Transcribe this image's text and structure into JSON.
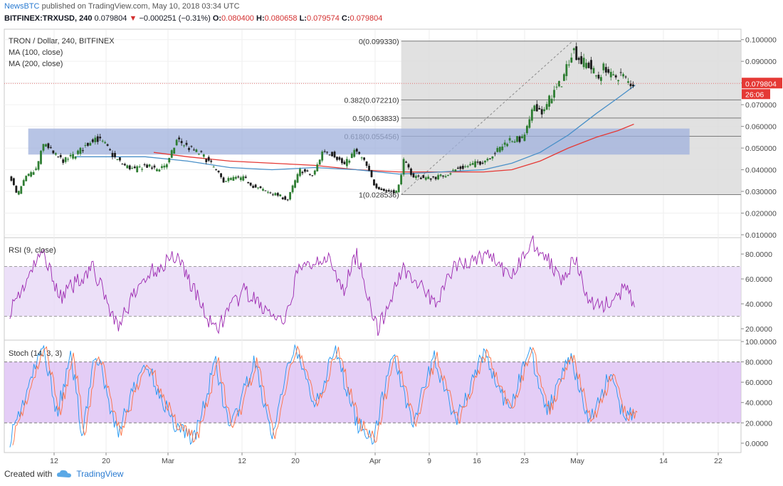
{
  "header": {
    "publisher": "NewsBTC",
    "published_text": "published on TradingView.com, May 10, 2018 03:34 UTC",
    "symbol_line": "BITFINEX:TRXUSD, 240",
    "last": "0.079804",
    "change": "−0.000251 (−0.31%)",
    "o_label": "O:",
    "o": "0.080400",
    "h_label": "H:",
    "h": "0.080658",
    "l_label": "L:",
    "l": "0.079574",
    "c_label": "C:",
    "c": "0.079804"
  },
  "legend": {
    "title": "TRON / Dollar, 240, BITFINEX",
    "ma100": "MA (100, close)",
    "ma200": "MA (200, close)",
    "rsi": "RSI (9, close)",
    "stoch": "Stoch (14, 3, 3)"
  },
  "fib_labels": {
    "f0": "0(0.099330)",
    "f382": "0.382(0.072210)",
    "f5": "0.5(0.063833)",
    "f618": "0.618(0.055456)",
    "f1": "1(0.028536)"
  },
  "price_axis_badges": {
    "price": "0.079804",
    "timer": "26:06"
  },
  "footer": {
    "created_with": "Created with",
    "brand": "TradingView"
  },
  "colors": {
    "up": "#2e7d32",
    "down": "#1b1b1b",
    "ma100": "#4a90c8",
    "ma200": "#e53935",
    "rsi": "#9c27b0",
    "stoch_k": "#2196f3",
    "stoch_d": "#ff7043",
    "band": "#e6d5f5",
    "zone": "#9fb0dc",
    "fibbox": "#dcdcdc"
  },
  "chart_data": [
    {
      "type": "candlestick",
      "title": "TRON / Dollar, 240, BITFINEX",
      "y_ticks": [
        "0.100000",
        "0.090000",
        "0.080000",
        "0.070000",
        "0.060000",
        "0.050000",
        "0.040000",
        "0.030000",
        "0.020000",
        "0.010000"
      ],
      "ylim": [
        0.009,
        0.1045
      ],
      "x_ticks": [
        "12",
        "20",
        "Mar",
        "12",
        "20",
        "Apr",
        "9",
        "16",
        "23",
        "May",
        "14",
        "22"
      ],
      "x_tick_pos": [
        76,
        149,
        236,
        340,
        415,
        527,
        603,
        670,
        737,
        811,
        932,
        1009
      ],
      "x_range_index": [
        0,
        1045
      ],
      "last_candle_index": 895,
      "fib_start_index": 563,
      "fib_levels": [
        {
          "ratio": 0,
          "value": 0.09933
        },
        {
          "ratio": 0.382,
          "value": 0.07221
        },
        {
          "ratio": 0.5,
          "value": 0.063833
        },
        {
          "ratio": 0.618,
          "value": 0.055456
        },
        {
          "ratio": 1,
          "value": 0.028536
        }
      ],
      "resistance_zone": {
        "from": 0.047,
        "to": 0.059,
        "start_index": 34,
        "end_index": 972
      },
      "price_path": [
        [
          10,
          0.036
        ],
        [
          18,
          0.028
        ],
        [
          30,
          0.036
        ],
        [
          45,
          0.04
        ],
        [
          57,
          0.053
        ],
        [
          70,
          0.047
        ],
        [
          85,
          0.044
        ],
        [
          100,
          0.047
        ],
        [
          112,
          0.05
        ],
        [
          128,
          0.055
        ],
        [
          142,
          0.052
        ],
        [
          155,
          0.046
        ],
        [
          170,
          0.042
        ],
        [
          185,
          0.04
        ],
        [
          200,
          0.042
        ],
        [
          215,
          0.04
        ],
        [
          232,
          0.043
        ],
        [
          245,
          0.054
        ],
        [
          262,
          0.05
        ],
        [
          280,
          0.047
        ],
        [
          295,
          0.042
        ],
        [
          310,
          0.035
        ],
        [
          325,
          0.036
        ],
        [
          340,
          0.036
        ],
        [
          355,
          0.032
        ],
        [
          372,
          0.03
        ],
        [
          390,
          0.028
        ],
        [
          402,
          0.026
        ],
        [
          410,
          0.033
        ],
        [
          420,
          0.04
        ],
        [
          438,
          0.037
        ],
        [
          452,
          0.049
        ],
        [
          468,
          0.047
        ],
        [
          482,
          0.042
        ],
        [
          498,
          0.049
        ],
        [
          512,
          0.043
        ],
        [
          525,
          0.033
        ],
        [
          540,
          0.03
        ],
        [
          558,
          0.03
        ],
        [
          566,
          0.044
        ],
        [
          580,
          0.037
        ],
        [
          600,
          0.036
        ],
        [
          620,
          0.037
        ],
        [
          640,
          0.04
        ],
        [
          660,
          0.042
        ],
        [
          680,
          0.044
        ],
        [
          700,
          0.049
        ],
        [
          716,
          0.054
        ],
        [
          735,
          0.054
        ],
        [
          745,
          0.062
        ],
        [
          752,
          0.07
        ],
        [
          765,
          0.066
        ],
        [
          775,
          0.074
        ],
        [
          790,
          0.08
        ],
        [
          806,
          0.096
        ],
        [
          818,
          0.09
        ],
        [
          830,
          0.088
        ],
        [
          842,
          0.082
        ],
        [
          852,
          0.088
        ],
        [
          862,
          0.082
        ],
        [
          875,
          0.084
        ],
        [
          886,
          0.08
        ],
        [
          895,
          0.0798
        ]
      ],
      "ma100_path": [
        [
          100,
          0.046
        ],
        [
          150,
          0.046
        ],
        [
          200,
          0.046
        ],
        [
          260,
          0.044
        ],
        [
          320,
          0.041
        ],
        [
          380,
          0.04
        ],
        [
          440,
          0.041
        ],
        [
          500,
          0.04
        ],
        [
          560,
          0.038
        ],
        [
          620,
          0.039
        ],
        [
          680,
          0.04
        ],
        [
          720,
          0.043
        ],
        [
          760,
          0.048
        ],
        [
          800,
          0.056
        ],
        [
          840,
          0.066
        ],
        [
          870,
          0.073
        ],
        [
          895,
          0.079
        ]
      ],
      "ma200_path": [
        [
          212,
          0.048
        ],
        [
          260,
          0.046
        ],
        [
          320,
          0.044
        ],
        [
          380,
          0.043
        ],
        [
          440,
          0.042
        ],
        [
          500,
          0.04
        ],
        [
          560,
          0.039
        ],
        [
          620,
          0.039
        ],
        [
          680,
          0.039
        ],
        [
          720,
          0.04
        ],
        [
          760,
          0.044
        ],
        [
          800,
          0.05
        ],
        [
          840,
          0.055
        ],
        [
          870,
          0.058
        ],
        [
          893,
          0.061
        ]
      ]
    },
    {
      "type": "line",
      "title": "RSI (9, close)",
      "y_ticks": [
        "80.0000",
        "60.0000",
        "40.0000",
        "20.0000"
      ],
      "ylim": [
        12,
        92
      ],
      "band": [
        30,
        70
      ],
      "series": [
        {
          "values_at": [
            [
              8,
              35
            ],
            [
              55,
              82
            ],
            [
              80,
              45
            ],
            [
              125,
              70
            ],
            [
              160,
              22
            ],
            [
              200,
              62
            ],
            [
              245,
              80
            ],
            [
              297,
              18
            ],
            [
              340,
              50
            ],
            [
              398,
              22
            ],
            [
              415,
              65
            ],
            [
              455,
              80
            ],
            [
              480,
              50
            ],
            [
              500,
              80
            ],
            [
              530,
              18
            ],
            [
              566,
              70
            ],
            [
              610,
              40
            ],
            [
              640,
              70
            ],
            [
              690,
              80
            ],
            [
              715,
              60
            ],
            [
              750,
              90
            ],
            [
              790,
              62
            ],
            [
              810,
              75
            ],
            [
              830,
              40
            ],
            [
              860,
              40
            ],
            [
              880,
              52
            ],
            [
              895,
              40
            ]
          ]
        }
      ]
    },
    {
      "type": "line",
      "title": "Stoch (14, 3, 3)",
      "y_ticks": [
        "100.0000",
        "80.0000",
        "60.0000",
        "40.0000",
        "20.0000",
        "0.0000"
      ],
      "ylim": [
        -5,
        100
      ],
      "band": [
        20,
        80
      ],
      "series": [
        {
          "values_at": [
            [
              8,
              5
            ],
            [
              55,
              95
            ],
            [
              75,
              30
            ],
            [
              95,
              85
            ],
            [
              110,
              10
            ],
            [
              130,
              90
            ],
            [
              160,
              10
            ],
            [
              200,
              80
            ],
            [
              240,
              20
            ],
            [
              270,
              5
            ],
            [
              300,
              80
            ],
            [
              320,
              10
            ],
            [
              355,
              80
            ],
            [
              380,
              5
            ],
            [
              410,
              95
            ],
            [
              440,
              40
            ],
            [
              470,
              90
            ],
            [
              500,
              20
            ],
            [
              525,
              5
            ],
            [
              550,
              90
            ],
            [
              580,
              20
            ],
            [
              610,
              85
            ],
            [
              640,
              20
            ],
            [
              680,
              90
            ],
            [
              715,
              30
            ],
            [
              745,
              95
            ],
            [
              770,
              30
            ],
            [
              800,
              90
            ],
            [
              830,
              20
            ],
            [
              860,
              70
            ],
            [
              880,
              20
            ],
            [
              895,
              35
            ]
          ]
        }
      ]
    }
  ]
}
